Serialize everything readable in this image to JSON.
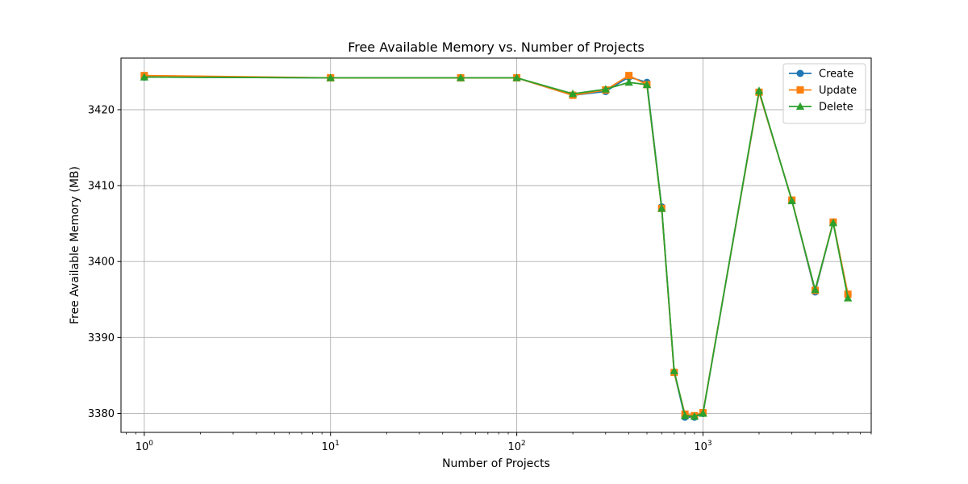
{
  "chart_data": {
    "type": "line",
    "title": "Free Available Memory vs. Number of Projects",
    "xlabel": "Number of Projects",
    "ylabel": "Free Available Memory (MB)",
    "xscale": "log",
    "xlim": [
      0.75,
      8000
    ],
    "ylim": [
      3377.5,
      3426.8
    ],
    "grid": true,
    "legend_position": "top-right",
    "x_ticks": [
      {
        "value": 1,
        "base": "10",
        "exp": "0"
      },
      {
        "value": 10,
        "base": "10",
        "exp": "1"
      },
      {
        "value": 100,
        "base": "10",
        "exp": "2"
      },
      {
        "value": 1000,
        "base": "10",
        "exp": "3"
      }
    ],
    "y_ticks": [
      3380,
      3390,
      3400,
      3410,
      3420
    ],
    "x": [
      1,
      10,
      50,
      100,
      200,
      300,
      400,
      500,
      600,
      700,
      800,
      900,
      1000,
      2000,
      3000,
      4000,
      5000,
      6000
    ],
    "series": [
      {
        "name": "Create",
        "color": "#1f77b4",
        "marker": "circle",
        "values": [
          3424.3,
          3424.2,
          3424.2,
          3424.2,
          3421.9,
          3422.4,
          3424.3,
          3423.6,
          3407.2,
          3385.4,
          3379.5,
          3379.5,
          3380.0,
          3422.3,
          3408.1,
          3396.0,
          3405.2,
          3395.6
        ]
      },
      {
        "name": "Update",
        "color": "#ff7f0e",
        "marker": "square",
        "values": [
          3424.5,
          3424.2,
          3424.2,
          3424.2,
          3421.9,
          3422.6,
          3424.5,
          3423.3,
          3407.0,
          3385.4,
          3379.9,
          3379.7,
          3380.1,
          3422.3,
          3408.1,
          3396.2,
          3405.2,
          3395.7
        ]
      },
      {
        "name": "Delete",
        "color": "#2ca02c",
        "marker": "triangle",
        "values": [
          3424.3,
          3424.2,
          3424.2,
          3424.2,
          3422.1,
          3422.7,
          3423.6,
          3423.3,
          3407.0,
          3385.6,
          3379.7,
          3379.6,
          3380.0,
          3422.5,
          3408.0,
          3396.3,
          3405.1,
          3395.2
        ]
      }
    ]
  }
}
